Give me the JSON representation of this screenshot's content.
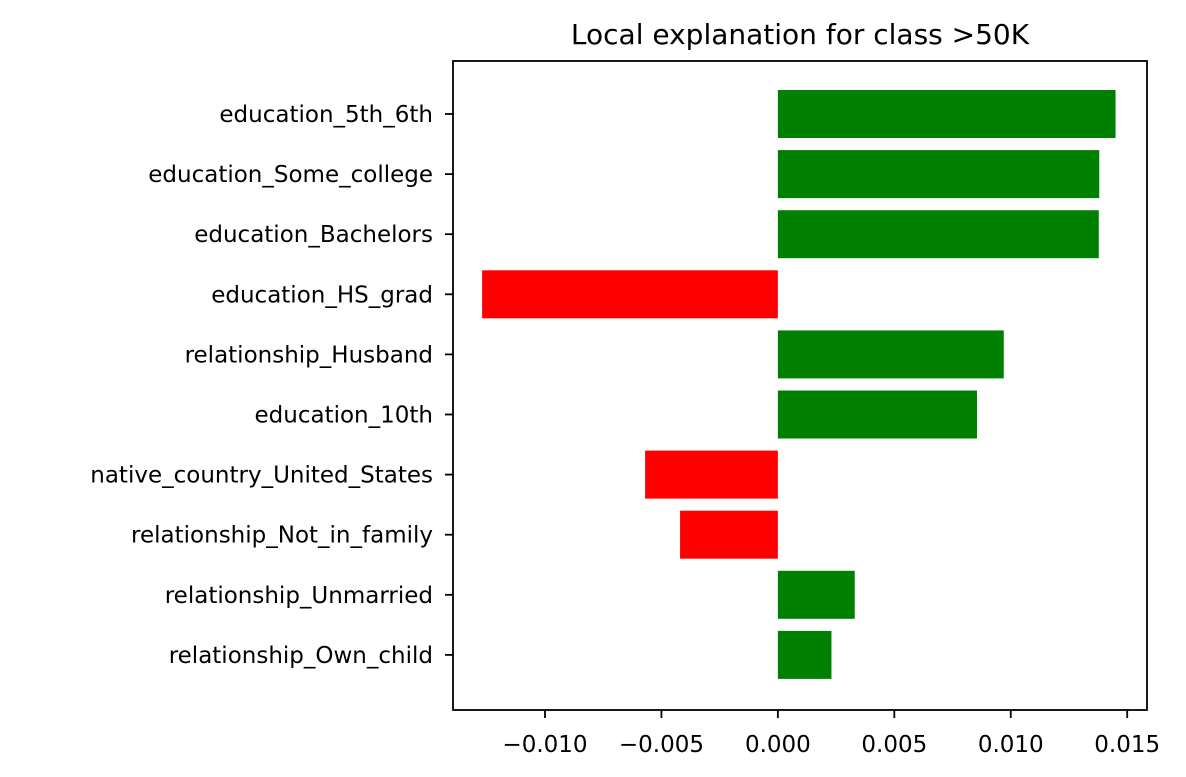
{
  "chart_data": {
    "type": "bar",
    "orientation": "horizontal",
    "title": "Local explanation for class >50K",
    "xlabel": "",
    "ylabel": "",
    "categories": [
      "education_5th_6th",
      "education_Some_college",
      "education_Bachelors",
      "education_HS_grad",
      "relationship_Husband",
      "education_10th",
      "native_country_United_States",
      "relationship_Not_in_family",
      "relationship_Unmarried",
      "relationship_Own_child"
    ],
    "values": [
      0.0145,
      0.0138,
      0.01378,
      -0.0127,
      0.0097,
      0.00855,
      -0.0057,
      -0.0042,
      0.0033,
      0.0023
    ],
    "xlim": [
      -0.01395,
      0.01585
    ],
    "xticks": [
      -0.01,
      -0.005,
      0.0,
      0.005,
      0.01,
      0.015
    ],
    "xtick_labels": [
      "−0.010",
      "−0.005",
      "0.000",
      "0.005",
      "0.010",
      "0.015"
    ],
    "grid": false,
    "legend": "none",
    "colors": {
      "positive": "#008000",
      "negative": "#ff0000"
    }
  }
}
